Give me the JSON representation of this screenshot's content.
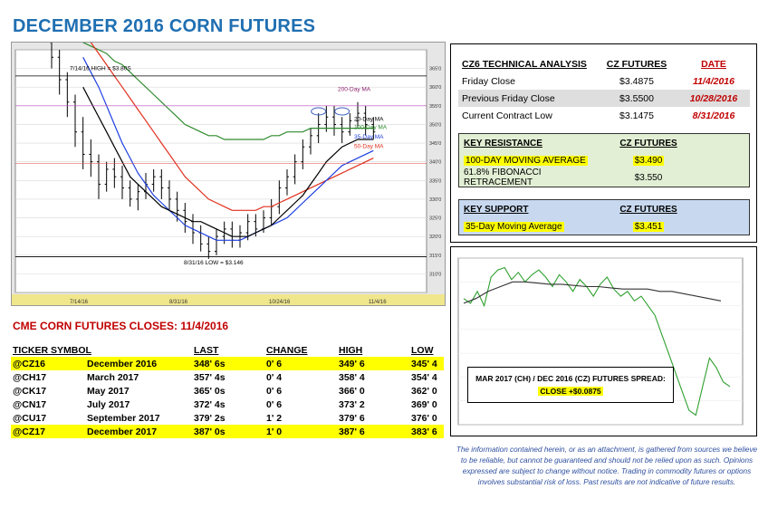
{
  "title": "DECEMBER 2016 CORN FUTURES",
  "chart_data": [
    {
      "type": "line",
      "title": "",
      "candles": [
        [
          372,
          368,
          378,
          365
        ],
        [
          368,
          362,
          370,
          358
        ],
        [
          362,
          356,
          364,
          352
        ],
        [
          356,
          348,
          358,
          344
        ],
        [
          348,
          342,
          352,
          338
        ],
        [
          342,
          340,
          346,
          336
        ],
        [
          340,
          334,
          342,
          330
        ],
        [
          334,
          338,
          340,
          332
        ],
        [
          338,
          336,
          341,
          333
        ],
        [
          336,
          333,
          339,
          330
        ],
        [
          333,
          330,
          335,
          328
        ],
        [
          330,
          332,
          334,
          327
        ],
        [
          332,
          334,
          337,
          330
        ],
        [
          334,
          336,
          338,
          332
        ],
        [
          336,
          333,
          338,
          330
        ],
        [
          333,
          330,
          335,
          327
        ],
        [
          330,
          327,
          332,
          324
        ],
        [
          327,
          324,
          329,
          321
        ],
        [
          324,
          321,
          326,
          318
        ],
        [
          321,
          318,
          323,
          316
        ],
        [
          318,
          316,
          320,
          314
        ],
        [
          316,
          320,
          322,
          315
        ],
        [
          320,
          322,
          324,
          318
        ],
        [
          322,
          319,
          324,
          317
        ],
        [
          319,
          321,
          323,
          317
        ],
        [
          321,
          324,
          326,
          319
        ],
        [
          324,
          322,
          326,
          320
        ],
        [
          322,
          325,
          327,
          321
        ],
        [
          325,
          328,
          330,
          323
        ],
        [
          328,
          333,
          335,
          326
        ],
        [
          333,
          336,
          338,
          331
        ],
        [
          336,
          340,
          342,
          334
        ],
        [
          340,
          344,
          346,
          338
        ],
        [
          344,
          347,
          349,
          342
        ],
        [
          347,
          350,
          353,
          345
        ],
        [
          350,
          352,
          355,
          348
        ],
        [
          352,
          350,
          355,
          347
        ],
        [
          350,
          348,
          352,
          345
        ],
        [
          348,
          351,
          353,
          347
        ],
        [
          351,
          353,
          356,
          349
        ],
        [
          353,
          350,
          355,
          347
        ],
        [
          350,
          348,
          352,
          346
        ]
      ],
      "price_range": [
        305,
        370
      ],
      "annotations": [
        {
          "text": "7/14/16 HIGH = $3.80S"
        },
        {
          "text": "8/31/16 LOW = $3.146"
        },
        {
          "text": "200-Day MA"
        },
        {
          "text": "20-Day MA"
        },
        {
          "text": "100-Day MA"
        },
        {
          "text": "35-Day MA"
        },
        {
          "text": "50-Day MA"
        }
      ],
      "ma_20": [
        360,
        356,
        352,
        348,
        344,
        340,
        336,
        334,
        332,
        330,
        328,
        327,
        326,
        325,
        324,
        324,
        323,
        322,
        321,
        320,
        320,
        320,
        321,
        322,
        323,
        325,
        327,
        329,
        331,
        334,
        337,
        340,
        342,
        344,
        345,
        346,
        346,
        346
      ],
      "ma_35": [
        368,
        364,
        360,
        355,
        350,
        345,
        341,
        337,
        334,
        331,
        329,
        327,
        325,
        323,
        322,
        321,
        320,
        319,
        319,
        319,
        319,
        320,
        321,
        322,
        323,
        324,
        325,
        327,
        329,
        331,
        333,
        335,
        337,
        339,
        340,
        341,
        342,
        343
      ],
      "ma_50": [
        375,
        372,
        369,
        366,
        363,
        360,
        357,
        354,
        351,
        348,
        345,
        342,
        339,
        336,
        334,
        332,
        330,
        329,
        328,
        327,
        327,
        327,
        327,
        328,
        328,
        329,
        330,
        331,
        332,
        333,
        334,
        335,
        336,
        337,
        338,
        339,
        340,
        341
      ],
      "ma_100": [
        372,
        371,
        370,
        369,
        367,
        366,
        364,
        362,
        360,
        358,
        356,
        354,
        352,
        350,
        349,
        348,
        347,
        347,
        346,
        346,
        346,
        346,
        346,
        346,
        347,
        347,
        348,
        348,
        348,
        349,
        349,
        349,
        349,
        349,
        349,
        349,
        349,
        349
      ],
      "ma_200": [
        388,
        388,
        387,
        387,
        386,
        386,
        385,
        385,
        384,
        383,
        383,
        382,
        382,
        381,
        381,
        380,
        380,
        379,
        379,
        378,
        378,
        378,
        377,
        377,
        377,
        376,
        376,
        376,
        375,
        375,
        375,
        375
      ],
      "xlabels": [
        "7/14/16",
        "8/31/16",
        "10/24/16",
        "11/4/16"
      ]
    },
    {
      "type": "line",
      "title": "MAR 2017 (CH) / DEC 2016 (CZ) FUTURES SPREAD:",
      "subtitle": "CLOSE +$0.0875",
      "series": [
        {
          "values": [
            8.3,
            8.1,
            8.6,
            8.0,
            9.2,
            9.5,
            9.6,
            9.1,
            9.4,
            9.0,
            9.3,
            9.5,
            9.2,
            8.8,
            9.3,
            9.0,
            8.6,
            9.1,
            8.8,
            8.4,
            8.9,
            9.2,
            8.7,
            8.4,
            8.6,
            8.2,
            8.4,
            8.0,
            7.6,
            6.8,
            6.0,
            5.2,
            4.4,
            3.6,
            3.4,
            4.6,
            5.8,
            5.4,
            4.8,
            4.6
          ]
        },
        {
          "values": [
            8.1,
            8.3,
            8.6,
            8.8,
            9.0,
            9.0,
            8.95,
            8.9,
            8.9,
            8.85,
            8.8,
            8.8,
            8.75,
            8.7,
            8.7,
            8.7,
            8.6,
            8.6,
            8.5,
            8.4,
            8.3,
            8.2
          ]
        }
      ],
      "ylim": [
        3,
        10
      ]
    }
  ],
  "ta": {
    "header": {
      "label": "CZ6 TECHNICAL ANALYSIS",
      "col2": "CZ FUTURES",
      "col3": "DATE"
    },
    "rows": [
      {
        "label": "Friday Close",
        "value": "$3.4875",
        "date": "11/4/2016"
      },
      {
        "label": "Previous Friday Close",
        "value": "$3.5500",
        "date": "10/28/2016"
      },
      {
        "label": "Current Contract Low",
        "value": "$3.1475",
        "date": "8/31/2016"
      }
    ]
  },
  "resistance": {
    "header": {
      "label": "KEY RESISTANCE",
      "col2": "CZ FUTURES"
    },
    "rows": [
      {
        "label": "100-DAY MOVING AVERAGE",
        "value": "$3.490"
      },
      {
        "label": "61.8% FIBONACCI RETRACEMENT",
        "value": "$3.550"
      }
    ]
  },
  "support": {
    "header": {
      "label": "KEY SUPPORT",
      "col2": "CZ FUTURES"
    },
    "rows": [
      {
        "label": "35-Day Moving Average",
        "value": "$3.451"
      }
    ]
  },
  "closes": {
    "title": "CME CORN FUTURES CLOSES:  11/4/2016",
    "headers": {
      "ticker": "TICKER SYMBOL",
      "last": "LAST",
      "change": "CHANGE",
      "high": "HIGH",
      "low": "LOW"
    },
    "rows": [
      {
        "ticker": "@CZ16",
        "name": "December 2016",
        "last": "348' 6s",
        "change": "0' 6",
        "high": "349' 6",
        "low": "345' 4"
      },
      {
        "ticker": "@CH17",
        "name": "March 2017",
        "last": "357' 4s",
        "change": "0' 4",
        "high": "358' 4",
        "low": "354' 4"
      },
      {
        "ticker": "@CK17",
        "name": "May 2017",
        "last": "365' 0s",
        "change": "0' 6",
        "high": "366' 0",
        "low": "362' 0"
      },
      {
        "ticker": "@CN17",
        "name": "July 2017",
        "last": "372' 4s",
        "change": "0' 6",
        "high": "373' 2",
        "low": "369' 0"
      },
      {
        "ticker": "@CU17",
        "name": "September 2017",
        "last": "379' 2s",
        "change": "1' 2",
        "high": "379' 6",
        "low": "376' 0"
      },
      {
        "ticker": "@CZ17",
        "name": "December 2017",
        "last": "387' 0s",
        "change": "1' 0",
        "high": "387' 6",
        "low": "383' 6"
      }
    ]
  },
  "disclaimer": "The information contained herein, or as an attachment, is gathered from sources we believe to be reliable, but cannot be guaranteed and should not be relied upon as such. Opinions expressed are subject to change without notice. Trading in commodity futures or options involves substantial risk of loss. Past results are not indicative of future results.",
  "colors": {
    "title": "#1f6fb2",
    "red": "#c00000",
    "highlight": "#ffff00",
    "resistance_bg": "#e2efd4",
    "support_bg": "#c8d9ef"
  }
}
